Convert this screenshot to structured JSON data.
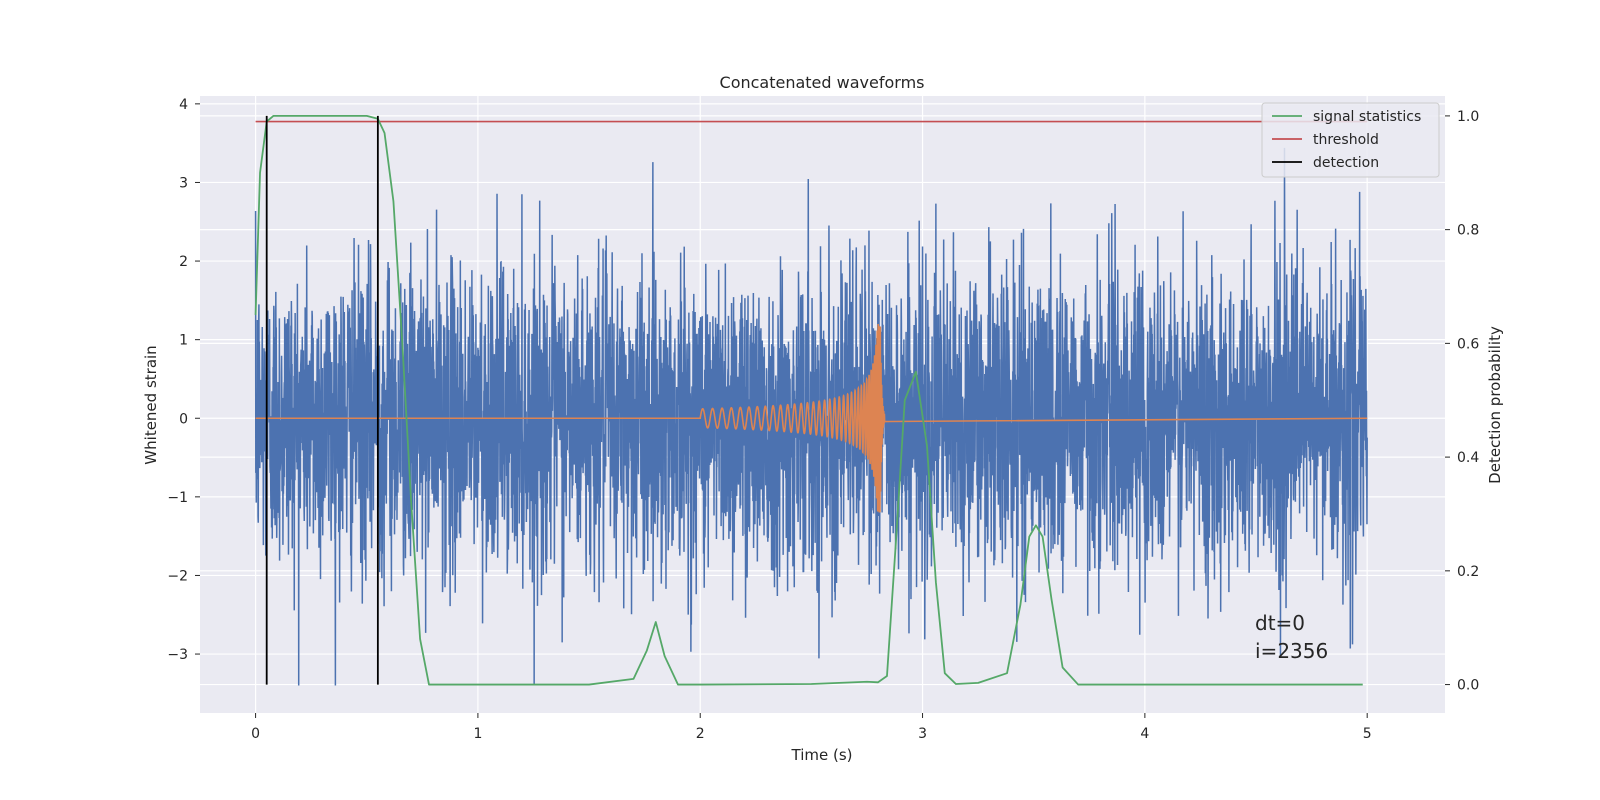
{
  "chart_data": {
    "type": "line",
    "title": "Concatenated waveforms",
    "xlabel": "Time (s)",
    "ylabel": "Whitened strain",
    "y2label": "Detection probability",
    "xlim": [
      -0.25,
      5.35
    ],
    "ylim": [
      -3.75,
      4.1
    ],
    "y2lim": [
      -0.05,
      1.035
    ],
    "xticks": [
      0,
      1,
      2,
      3,
      4,
      5
    ],
    "xtick_labels": [
      "0",
      "1",
      "2",
      "3",
      "4",
      "5"
    ],
    "yticks": [
      -3,
      -2,
      -1,
      0,
      1,
      2,
      3,
      4
    ],
    "ytick_labels": [
      "−3",
      "−2",
      "−1",
      "0",
      "1",
      "2",
      "3",
      "4"
    ],
    "y2ticks": [
      0.0,
      0.2,
      0.4,
      0.6,
      0.8,
      1.0
    ],
    "y2tick_labels": [
      "0.0",
      "0.2",
      "0.4",
      "0.6",
      "0.8",
      "1.0"
    ],
    "grid": true,
    "legend_position": "top-right",
    "annotations": [
      "dt=0",
      "i=2356"
    ],
    "series": [
      {
        "name": "",
        "kind": "noise",
        "axis": "left",
        "color": "#4c72b0",
        "x_range": [
          0,
          5
        ],
        "amplitude_std": 0.95,
        "amplitude_max": 3.7,
        "amplitude_min": -3.4
      },
      {
        "name": "",
        "kind": "chirp",
        "axis": "left",
        "color": "#dd8452",
        "x_range": [
          0,
          5
        ],
        "chirp_range": [
          2.0,
          2.83
        ],
        "peak_amplitude": 1.2,
        "peak_time": 2.81
      },
      {
        "name": "signal statistics",
        "axis": "right",
        "color": "#55a868",
        "x": [
          0.0,
          0.02,
          0.05,
          0.08,
          0.12,
          0.2,
          0.3,
          0.4,
          0.5,
          0.55,
          0.58,
          0.62,
          0.66,
          0.7,
          0.74,
          0.78,
          1.0,
          1.5,
          1.7,
          1.76,
          1.8,
          1.84,
          1.9,
          2.0,
          2.5,
          2.75,
          2.8,
          2.84,
          2.88,
          2.92,
          2.97,
          3.02,
          3.06,
          3.1,
          3.15,
          3.25,
          3.38,
          3.44,
          3.48,
          3.51,
          3.54,
          3.58,
          3.63,
          3.7,
          4.0,
          4.98
        ],
        "y": [
          0.65,
          0.9,
          0.99,
          1.0,
          1.0,
          1.0,
          1.0,
          1.0,
          1.0,
          0.995,
          0.97,
          0.85,
          0.6,
          0.32,
          0.08,
          0.0,
          0.0,
          0.0,
          0.01,
          0.06,
          0.11,
          0.05,
          0.0,
          0.0,
          0.001,
          0.005,
          0.004,
          0.015,
          0.25,
          0.5,
          0.55,
          0.42,
          0.18,
          0.02,
          0.001,
          0.003,
          0.02,
          0.14,
          0.26,
          0.28,
          0.26,
          0.15,
          0.03,
          0.0,
          0.0,
          0.0
        ]
      },
      {
        "name": "threshold",
        "axis": "right",
        "color": "#c44e52",
        "x": [
          0,
          5
        ],
        "y": [
          0.99,
          0.99
        ]
      },
      {
        "name": "detection",
        "axis": "right",
        "color": "#000000",
        "x": [
          0.05,
          0.55
        ],
        "y_range": [
          0,
          1.0
        ]
      }
    ]
  }
}
